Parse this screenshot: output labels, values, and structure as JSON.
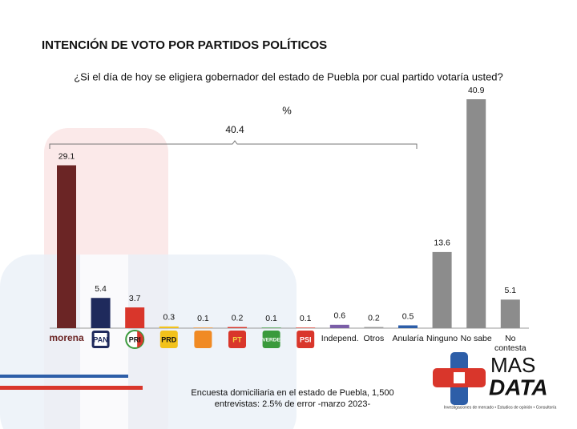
{
  "chart_data": {
    "type": "bar",
    "title": "INTENCIÓN DE VOTO POR PARTIDOS POLÍTICOS",
    "subtitle": "¿Si el día de hoy se eligiera gobernador del estado de Puebla por cual partido votaría usted?",
    "unit_label": "%",
    "bracket": {
      "value": 40.4
    },
    "categories": [
      "morena",
      "PAN",
      "PRI",
      "PRD",
      null,
      "PT",
      "VERDE",
      "PSI",
      "Independ.",
      "Otros",
      "Anularía",
      "Ninguno",
      "No sabe",
      "No contesta"
    ],
    "values": [
      29.1,
      5.4,
      3.7,
      0.3,
      0.1,
      0.2,
      0.1,
      0.1,
      0.6,
      0.2,
      0.5,
      13.6,
      40.9,
      5.1
    ],
    "colors": [
      "#6b2525",
      "#1f2a5c",
      "#d9362b",
      "#f2c21b",
      "#f08a24",
      "#d9362b",
      "#3a9a3c",
      "#d9362b",
      "#7b5ea7",
      "#9a9a9a",
      "#2d5ea8",
      "#8c8c8c",
      "#8c8c8c",
      "#8c8c8c"
    ],
    "source": [
      "Encuesta domiciliaria en el estado de Puebla, 1,500",
      "entrevistas: 2.5% de error -marzo 2023-"
    ],
    "logo": {
      "line1": "MAS",
      "line2": "DATA",
      "tagline": "Investigaciones de mercado • Estudios de opinión • Consultoría"
    }
  }
}
